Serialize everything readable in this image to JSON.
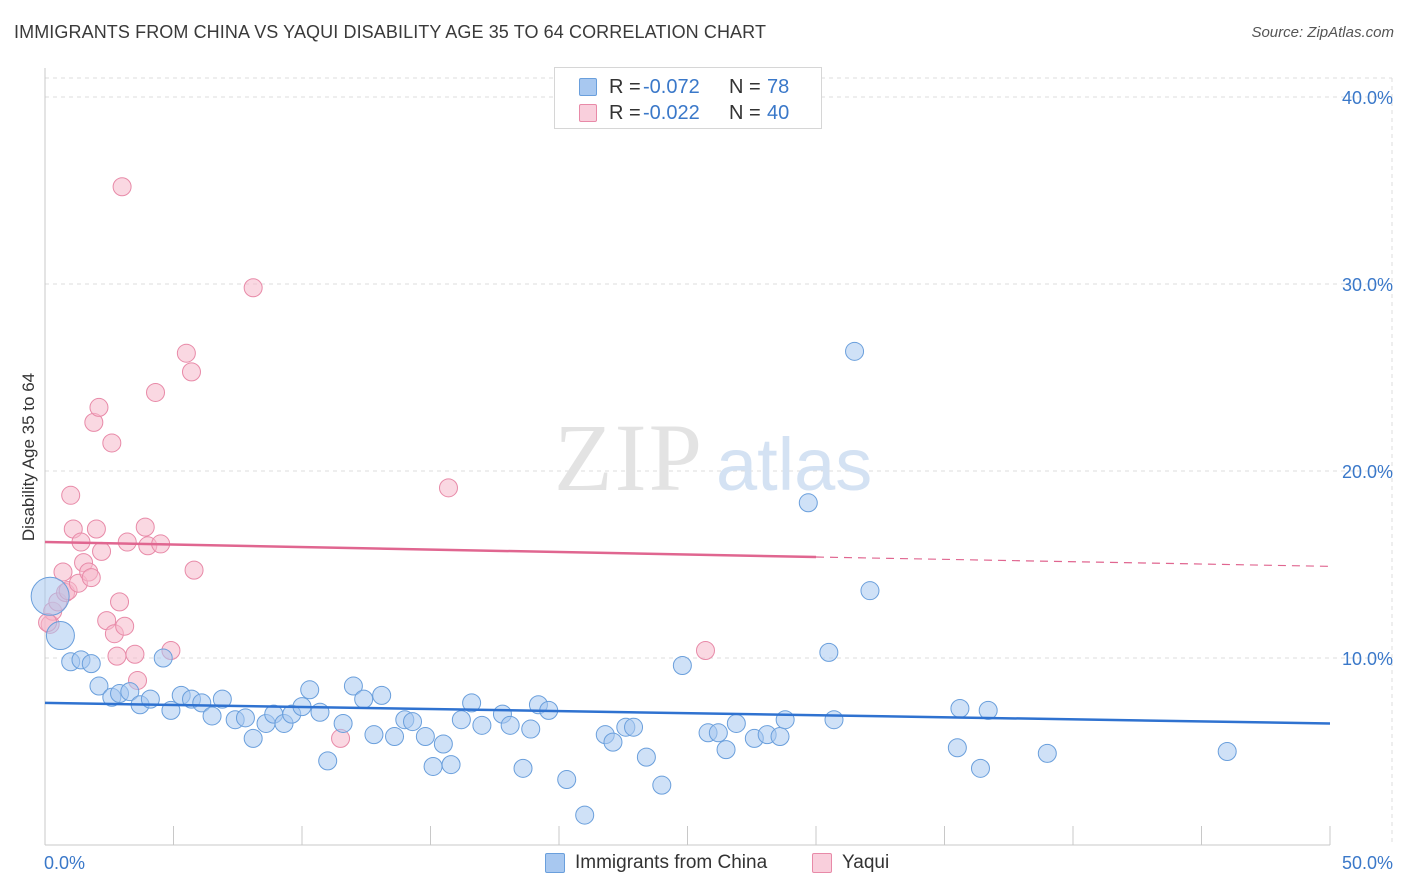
{
  "title": "IMMIGRANTS FROM CHINA VS YAQUI DISABILITY AGE 35 TO 64 CORRELATION CHART",
  "source": "Source: ZipAtlas.com",
  "watermark": {
    "zip": "ZIP",
    "atlas": "atlas"
  },
  "colors": {
    "blue_fill": "#a8c8f0",
    "blue_stroke": "#6a9fdc",
    "blue_line": "#2f72d0",
    "pink_fill": "#f5b8cb",
    "pink_stroke": "#e88aa8",
    "pink_line": "#e06690",
    "axis_label": "#3a78c9",
    "grid": "#dcdcdc"
  },
  "legend": {
    "series": [
      {
        "r_label": "R =",
        "r_value": "-0.072",
        "n_label": "N =",
        "n_value": "78"
      },
      {
        "r_label": "R =",
        "r_value": "-0.022",
        "n_label": "N =",
        "n_value": "40"
      }
    ]
  },
  "bottom_legend": [
    "Immigrants from China",
    "Yaqui"
  ],
  "chart_data": {
    "type": "scatter",
    "title": "IMMIGRANTS FROM CHINA VS YAQUI DISABILITY AGE 35 TO 64 CORRELATION CHART",
    "xlabel": "",
    "ylabel": "Disability Age 35 to 64",
    "xlim": [
      0,
      50
    ],
    "ylim": [
      0,
      40
    ],
    "x_tick_labels": [
      "0.0%",
      "50.0%"
    ],
    "y_ticks": [
      10,
      20,
      30,
      40
    ],
    "y_tick_labels": [
      "10.0%",
      "20.0%",
      "30.0%",
      "40.0%"
    ],
    "grid": true,
    "legend_position": "top-center",
    "series": [
      {
        "name": "Immigrants from China",
        "r": -0.072,
        "n": 78,
        "trend": {
          "x0": 0,
          "y0": 7.6,
          "x1": 50,
          "y1": 6.5
        },
        "points": [
          [
            0.2,
            13.3,
            "big"
          ],
          [
            0.6,
            11.2,
            "mid"
          ],
          [
            1.0,
            9.8
          ],
          [
            1.4,
            9.9
          ],
          [
            1.8,
            9.7
          ],
          [
            2.1,
            8.5
          ],
          [
            2.6,
            7.9
          ],
          [
            2.9,
            8.1
          ],
          [
            3.3,
            8.2
          ],
          [
            3.7,
            7.5
          ],
          [
            4.1,
            7.8
          ],
          [
            4.6,
            10.0
          ],
          [
            4.9,
            7.2
          ],
          [
            5.3,
            8.0
          ],
          [
            5.7,
            7.8
          ],
          [
            6.1,
            7.6
          ],
          [
            6.5,
            6.9
          ],
          [
            6.9,
            7.8
          ],
          [
            7.4,
            6.7
          ],
          [
            7.8,
            6.8
          ],
          [
            8.1,
            5.7
          ],
          [
            8.6,
            6.5
          ],
          [
            8.9,
            7.0
          ],
          [
            9.3,
            6.5
          ],
          [
            9.6,
            7.0
          ],
          [
            10.0,
            7.4
          ],
          [
            10.3,
            8.3
          ],
          [
            10.7,
            7.1
          ],
          [
            11.0,
            4.5
          ],
          [
            11.6,
            6.5
          ],
          [
            12.0,
            8.5
          ],
          [
            12.4,
            7.8
          ],
          [
            12.8,
            5.9
          ],
          [
            13.1,
            8.0
          ],
          [
            13.6,
            5.8
          ],
          [
            14.0,
            6.7
          ],
          [
            14.3,
            6.6
          ],
          [
            14.8,
            5.8
          ],
          [
            15.1,
            4.2
          ],
          [
            15.5,
            5.4
          ],
          [
            15.8,
            4.3
          ],
          [
            16.2,
            6.7
          ],
          [
            16.6,
            7.6
          ],
          [
            17.0,
            6.4
          ],
          [
            17.8,
            7.0
          ],
          [
            18.1,
            6.4
          ],
          [
            18.6,
            4.1
          ],
          [
            18.9,
            6.2
          ],
          [
            19.2,
            7.5
          ],
          [
            19.6,
            7.2
          ],
          [
            20.3,
            3.5
          ],
          [
            21.0,
            1.6
          ],
          [
            21.8,
            5.9
          ],
          [
            22.1,
            5.5
          ],
          [
            22.6,
            6.3
          ],
          [
            22.9,
            6.3
          ],
          [
            23.4,
            4.7
          ],
          [
            24.0,
            3.2
          ],
          [
            24.8,
            9.6
          ],
          [
            25.8,
            6.0
          ],
          [
            26.2,
            6.0
          ],
          [
            26.5,
            5.1
          ],
          [
            26.9,
            6.5
          ],
          [
            27.6,
            5.7
          ],
          [
            28.1,
            5.9
          ],
          [
            28.6,
            5.8
          ],
          [
            28.8,
            6.7
          ],
          [
            29.7,
            18.3
          ],
          [
            30.5,
            10.3
          ],
          [
            30.7,
            6.7
          ],
          [
            31.5,
            26.4
          ],
          [
            32.1,
            13.6
          ],
          [
            35.5,
            5.2
          ],
          [
            35.6,
            7.3
          ],
          [
            36.4,
            4.1
          ],
          [
            36.7,
            7.2
          ],
          [
            39.0,
            4.9
          ],
          [
            46.0,
            5.0
          ]
        ]
      },
      {
        "name": "Yaqui",
        "r": -0.022,
        "n": 40,
        "trend": {
          "x0": 0,
          "y0": 16.2,
          "x1": 30.0,
          "y1": 15.4
        },
        "trend_dashed": {
          "x0": 30.0,
          "y0": 15.4,
          "x1": 50,
          "y1": 14.9
        },
        "points": [
          [
            0.2,
            11.8
          ],
          [
            0.3,
            12.5
          ],
          [
            0.5,
            13.0
          ],
          [
            0.7,
            14.6
          ],
          [
            0.8,
            13.5
          ],
          [
            0.9,
            13.6
          ],
          [
            1.0,
            18.7
          ],
          [
            1.1,
            16.9
          ],
          [
            1.3,
            14.0
          ],
          [
            1.4,
            16.2
          ],
          [
            1.5,
            15.1
          ],
          [
            1.7,
            14.6
          ],
          [
            1.8,
            14.3
          ],
          [
            1.9,
            22.6
          ],
          [
            2.0,
            16.9
          ],
          [
            2.1,
            23.4
          ],
          [
            2.2,
            15.7
          ],
          [
            2.4,
            12.0
          ],
          [
            2.6,
            21.5
          ],
          [
            2.7,
            11.3
          ],
          [
            2.8,
            10.1
          ],
          [
            2.9,
            13.0
          ],
          [
            3.0,
            35.2
          ],
          [
            3.1,
            11.7
          ],
          [
            3.2,
            16.2
          ],
          [
            3.5,
            10.2
          ],
          [
            3.6,
            8.8
          ],
          [
            3.9,
            17.0
          ],
          [
            4.0,
            16.0
          ],
          [
            4.3,
            24.2
          ],
          [
            4.5,
            16.1
          ],
          [
            4.9,
            10.4
          ],
          [
            5.5,
            26.3
          ],
          [
            5.7,
            25.3
          ],
          [
            5.8,
            14.7
          ],
          [
            8.1,
            29.8
          ],
          [
            11.5,
            5.7
          ],
          [
            15.7,
            19.1
          ],
          [
            25.7,
            10.4
          ],
          [
            0.1,
            11.9
          ]
        ]
      }
    ]
  }
}
